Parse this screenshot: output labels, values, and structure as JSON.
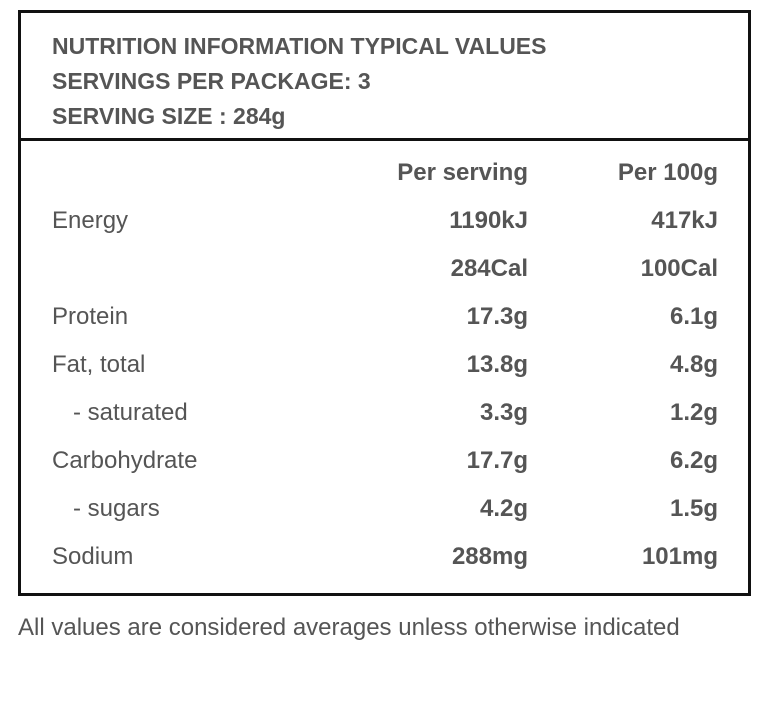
{
  "header": {
    "line1": "NUTRITION INFORMATION TYPICAL VALUES",
    "line2": "SERVINGS PER PACKAGE: 3",
    "line3": "SERVING SIZE : 284g"
  },
  "columns": {
    "per_serving": "Per serving",
    "per_100g": "Per 100g"
  },
  "rows": [
    {
      "label": "Energy",
      "per_serving": "1190kJ",
      "per_100g": "417kJ"
    },
    {
      "label": "",
      "per_serving": "284Cal",
      "per_100g": "100Cal"
    },
    {
      "label": "Protein",
      "per_serving": "17.3g",
      "per_100g": "6.1g"
    },
    {
      "label": "Fat, total",
      "per_serving": "13.8g",
      "per_100g": "4.8g"
    },
    {
      "label": "- saturated",
      "per_serving": "3.3g",
      "per_100g": "1.2g"
    },
    {
      "label": "Carbohydrate",
      "per_serving": "17.7g",
      "per_100g": "6.2g"
    },
    {
      "label": "- sugars",
      "per_serving": "4.2g",
      "per_100g": "1.5g"
    },
    {
      "label": "Sodium",
      "per_serving": "288mg",
      "per_100g": "101mg"
    }
  ],
  "footnote": "All values are considered averages unless otherwise indicated"
}
